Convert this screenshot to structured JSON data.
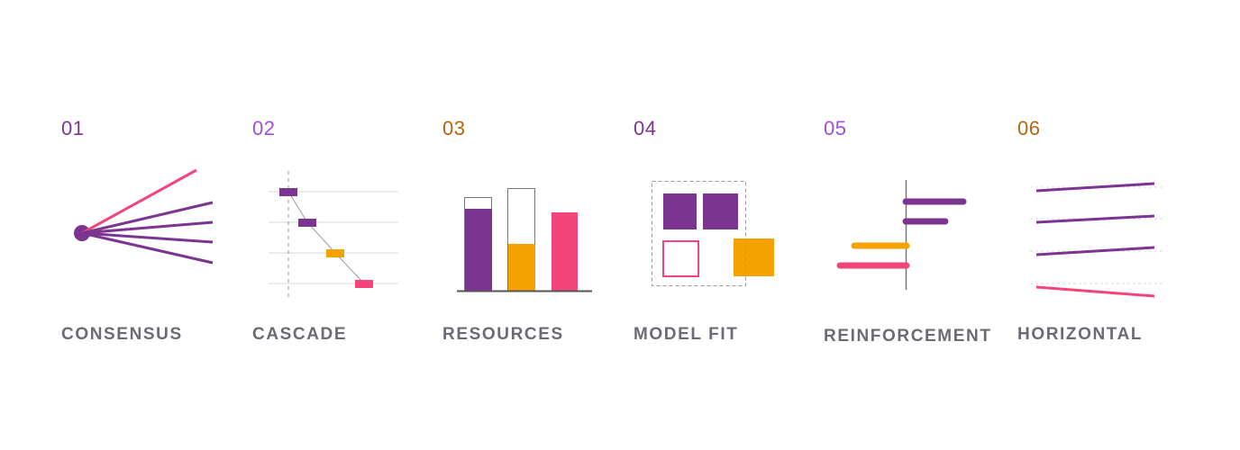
{
  "colors": {
    "purple": "#7b3590",
    "lavender": "#9d4fd9",
    "brown": "#b0650f",
    "pink": "#f4457a",
    "orange": "#f5a200",
    "label_gray": "#6b6b73",
    "line_gray": "#999999"
  },
  "items": [
    {
      "number": "01",
      "label": "CONSENSUS",
      "number_color": "#7b3590",
      "icon": "consensus-icon"
    },
    {
      "number": "02",
      "label": "CASCADE",
      "number_color": "#9d4fd9",
      "icon": "cascade-icon"
    },
    {
      "number": "03",
      "label": "RESOURCES",
      "number_color": "#b0650f",
      "icon": "resources-icon"
    },
    {
      "number": "04",
      "label": "MODEL FIT",
      "number_color": "#7b3590",
      "icon": "model-fit-icon"
    },
    {
      "number": "05",
      "label": "REINFORCEMENT",
      "number_color": "#9d4fd9",
      "icon": "reinforcement-icon"
    },
    {
      "number": "06",
      "label": "HORIZONTAL",
      "number_color": "#b0650f",
      "icon": "horizontal-icon"
    }
  ]
}
